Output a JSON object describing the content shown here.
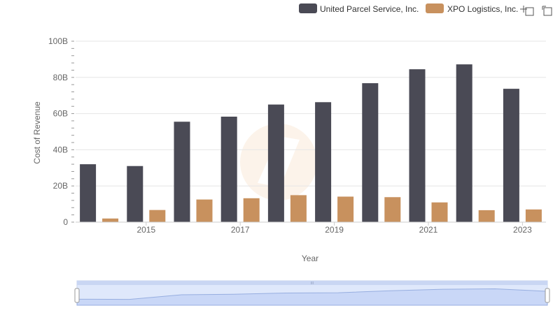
{
  "chart_data": {
    "type": "bar",
    "title": "",
    "xlabel": "Year",
    "ylabel": "Cost of Revenue",
    "categories": [
      2014,
      2015,
      2016,
      2017,
      2018,
      2019,
      2020,
      2021,
      2022,
      2023
    ],
    "x_tick_labels": [
      "2015",
      "2017",
      "2019",
      "2021",
      "2023"
    ],
    "y_tick_labels": [
      "0",
      "20B",
      "40B",
      "60B",
      "80B",
      "100B"
    ],
    "ylim": [
      0,
      100
    ],
    "y_unit": "B",
    "grid": true,
    "legend_position": "top-right",
    "series": [
      {
        "name": "United Parcel Service, Inc.",
        "color": "#4a4a55",
        "values": [
          32.0,
          31.0,
          55.5,
          58.3,
          65.0,
          66.3,
          76.8,
          84.5,
          87.2,
          73.7
        ]
      },
      {
        "name": "XPO Logistics, Inc.",
        "color": "#c8915e",
        "values": [
          2.0,
          6.7,
          12.5,
          13.2,
          14.9,
          14.1,
          13.8,
          10.9,
          6.6,
          7.0
        ]
      }
    ]
  },
  "toolbar": {
    "icons": [
      "zoom-icon",
      "reset-zoom-icon"
    ]
  },
  "navigator": {
    "range": [
      2014,
      2023
    ],
    "handle_glyph": "III"
  }
}
